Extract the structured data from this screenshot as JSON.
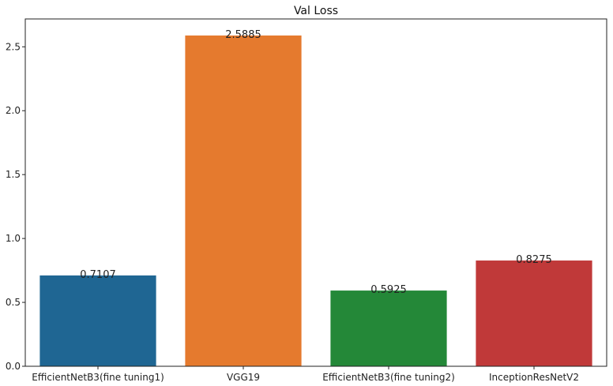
{
  "chart_data": {
    "type": "bar",
    "title": "Val Loss",
    "xlabel": "",
    "ylabel": "",
    "categories": [
      "EfficientNetB3(fine tuning1)",
      "VGG19",
      "EfficientNetB3(fine tuning2)",
      "InceptionResNetV2"
    ],
    "values": [
      0.7107,
      2.5885,
      0.5925,
      0.8275
    ],
    "value_labels": [
      "0.7107",
      "2.5885",
      "0.5925",
      "0.8275"
    ],
    "colors": [
      "#1f6693",
      "#e57a2e",
      "#248838",
      "#c03939"
    ],
    "ylim": [
      0,
      2.718
    ],
    "yticks": [
      0.0,
      0.5,
      1.0,
      1.5,
      2.0,
      2.5
    ],
    "ytick_labels": [
      "0.0",
      "0.5",
      "1.0",
      "1.5",
      "2.0",
      "2.5"
    ],
    "grid": false
  }
}
